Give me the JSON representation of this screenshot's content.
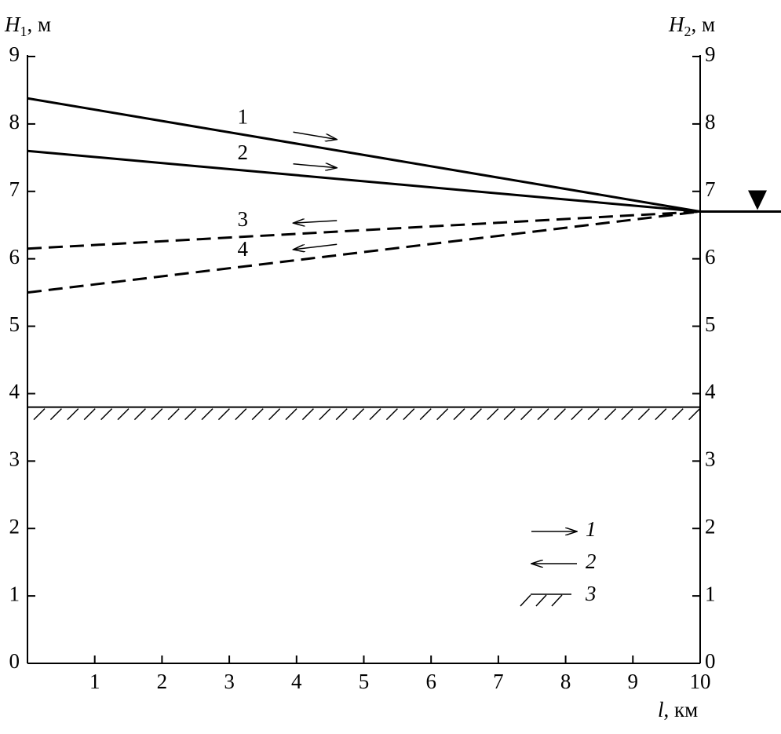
{
  "chart_data": {
    "type": "line",
    "y_label": {
      "symbol": "H",
      "sub": "1",
      "unit": ", м"
    },
    "y2_label": {
      "symbol": "H",
      "sub": "2",
      "unit": ", м"
    },
    "x_label": {
      "symbol": "l",
      "unit": ", км"
    },
    "x": [
      0,
      10
    ],
    "series": [
      {
        "name": "1",
        "color": "#000",
        "dash": false,
        "direction": "right",
        "values": [
          8.38,
          6.7
        ]
      },
      {
        "name": "2",
        "color": "#000",
        "dash": false,
        "direction": "right",
        "values": [
          7.6,
          6.7
        ]
      },
      {
        "name": "3",
        "color": "#000",
        "dash": true,
        "direction": "left",
        "values": [
          6.15,
          6.7
        ]
      },
      {
        "name": "4",
        "color": "#000",
        "dash": true,
        "direction": "left",
        "values": [
          5.5,
          6.7
        ]
      }
    ],
    "water_level": 6.7,
    "bottom_level": 3.8,
    "xlim": [
      0,
      10
    ],
    "xticks": [
      1,
      2,
      3,
      4,
      5,
      6,
      7,
      8,
      9,
      10
    ],
    "ylim": [
      0,
      9
    ],
    "yticks": [
      0,
      1,
      2,
      3,
      4,
      5,
      6,
      7,
      8,
      9
    ],
    "y2lim": [
      0,
      9
    ],
    "y2ticks": [
      0,
      1,
      2,
      3,
      4,
      5,
      6,
      7,
      8,
      9
    ],
    "legend": [
      {
        "label": "1",
        "symbol": "arrow-right"
      },
      {
        "label": "2",
        "symbol": "arrow-left"
      },
      {
        "label": "3",
        "symbol": "hatch"
      }
    ]
  }
}
